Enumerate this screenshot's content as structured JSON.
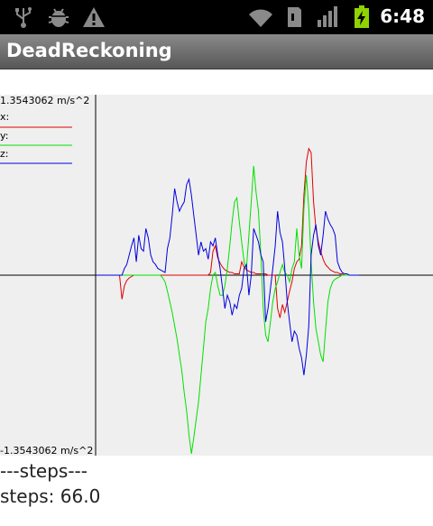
{
  "status_bar": {
    "time": "6:48",
    "icons": [
      "usb-icon",
      "android-debug-icon",
      "warning-icon",
      "wifi-icon",
      "sd-card-icon",
      "signal-icon",
      "battery-charging-icon"
    ]
  },
  "app": {
    "title": "DeadReckoning"
  },
  "graph": {
    "max_label": "1.3543062 m/s^2",
    "min_label": "-1.3543062 m/s^2",
    "legend": [
      {
        "label": "x:",
        "color": "#e00000"
      },
      {
        "label": "y:",
        "color": "#00e000"
      },
      {
        "label": "z:",
        "color": "#0000e0"
      }
    ]
  },
  "chart_data": {
    "type": "line",
    "ylim": [
      -1.3543062,
      1.3543062
    ],
    "grid": false,
    "legend_position": "top-left",
    "series": [
      {
        "name": "x",
        "color": "#e00000",
        "values": [
          0.0,
          0.0,
          0.0,
          0.0,
          0.0,
          0.0,
          0.0,
          0.0,
          0.0,
          0.0,
          0.0,
          -0.18,
          -0.08,
          -0.04,
          -0.02,
          -0.01,
          0.0,
          0.0,
          0.0,
          0.0,
          0.0,
          0.0,
          0.0,
          0.0,
          0.0,
          0.0,
          0.0,
          0.0,
          0.0,
          0.0,
          0.0,
          0.0,
          0.0,
          0.0,
          0.0,
          0.0,
          0.0,
          0.0,
          0.0,
          0.0,
          0.0,
          0.0,
          0.0,
          0.0,
          0.0,
          0.0,
          0.0,
          0.0,
          0.02,
          0.18,
          0.22,
          0.13,
          0.09,
          0.06,
          0.04,
          0.03,
          0.02,
          0.02,
          0.01,
          0.01,
          0.01,
          0.1,
          0.06,
          0.04,
          0.03,
          0.02,
          0.02,
          0.01,
          0.01,
          0.01,
          0.01,
          0.01,
          0.0,
          0.0,
          0.0,
          0.0,
          -0.25,
          -0.32,
          -0.22,
          -0.28,
          -0.2,
          -0.12,
          -0.05,
          0.05,
          0.1,
          0.12,
          0.22,
          0.6,
          0.85,
          0.95,
          0.92,
          0.55,
          0.35,
          0.25,
          0.18,
          0.12,
          0.08,
          0.06,
          0.04,
          0.03,
          0.02,
          0.02,
          0.01,
          0.01,
          0.0,
          0.0,
          0.0,
          0.0,
          0.0,
          0.0,
          0.0
        ]
      },
      {
        "name": "y",
        "color": "#00e000",
        "values": [
          0.0,
          0.0,
          0.0,
          0.0,
          0.0,
          0.0,
          0.0,
          0.0,
          0.0,
          0.0,
          0.0,
          0.0,
          0.0,
          0.0,
          0.0,
          0.0,
          0.0,
          0.0,
          0.0,
          0.0,
          0.0,
          0.0,
          0.0,
          0.0,
          0.0,
          0.0,
          0.0,
          0.0,
          -0.02,
          -0.05,
          -0.12,
          -0.2,
          -0.28,
          -0.38,
          -0.48,
          -0.6,
          -0.72,
          -0.88,
          -1.02,
          -1.2,
          -1.34,
          -1.22,
          -1.08,
          -0.95,
          -0.75,
          -0.55,
          -0.35,
          -0.25,
          -0.1,
          0.0,
          0.02,
          -0.08,
          -0.15,
          -0.15,
          -0.08,
          0.05,
          0.22,
          0.4,
          0.55,
          0.58,
          0.4,
          0.25,
          0.1,
          0.05,
          0.3,
          0.55,
          0.82,
          0.62,
          0.48,
          0.15,
          -0.25,
          -0.45,
          -0.5,
          -0.35,
          -0.2,
          -0.1,
          -0.05,
          0.02,
          0.08,
          0.02,
          0.0,
          -0.05,
          0.05,
          0.1,
          0.35,
          0.15,
          0.05,
          0.5,
          0.75,
          0.5,
          0.1,
          -0.2,
          -0.4,
          -0.5,
          -0.6,
          -0.65,
          -0.42,
          -0.2,
          -0.1,
          -0.05,
          -0.03,
          -0.02,
          -0.01,
          0.0,
          0.0,
          0.0,
          0.0,
          0.0,
          0.0,
          0.0,
          0.0
        ]
      },
      {
        "name": "z",
        "color": "#0000e0",
        "values": [
          0.0,
          0.0,
          0.0,
          0.0,
          0.0,
          0.0,
          0.0,
          0.0,
          0.0,
          0.0,
          0.0,
          0.0,
          0.05,
          0.08,
          0.15,
          0.22,
          0.28,
          0.1,
          0.3,
          0.2,
          0.18,
          0.35,
          0.28,
          0.15,
          0.1,
          0.08,
          0.05,
          0.04,
          0.03,
          0.02,
          0.2,
          0.28,
          0.45,
          0.65,
          0.55,
          0.48,
          0.52,
          0.55,
          0.68,
          0.72,
          0.6,
          0.45,
          0.3,
          0.15,
          0.25,
          0.18,
          0.2,
          0.12,
          0.25,
          0.22,
          0.28,
          0.15,
          0.05,
          -0.1,
          -0.25,
          -0.15,
          -0.2,
          -0.3,
          -0.22,
          -0.25,
          -0.15,
          -0.1,
          0.05,
          0.08,
          -0.15,
          0.0,
          0.35,
          0.3,
          0.25,
          0.15,
          0.1,
          -0.35,
          -0.25,
          -0.1,
          0.05,
          0.22,
          0.48,
          0.32,
          0.25,
          0.05,
          -0.2,
          -0.35,
          -0.5,
          -0.42,
          -0.45,
          -0.55,
          -0.62,
          -0.75,
          -0.6,
          -0.38,
          0.15,
          0.3,
          0.38,
          0.22,
          0.15,
          0.3,
          0.48,
          0.42,
          0.38,
          0.35,
          0.3,
          0.1,
          0.05,
          0.02,
          0.01,
          0.01,
          0.0,
          0.0,
          0.0,
          0.0,
          0.0
        ]
      }
    ]
  },
  "steps": {
    "header": "---steps---",
    "value_text": "steps: 66.0"
  }
}
